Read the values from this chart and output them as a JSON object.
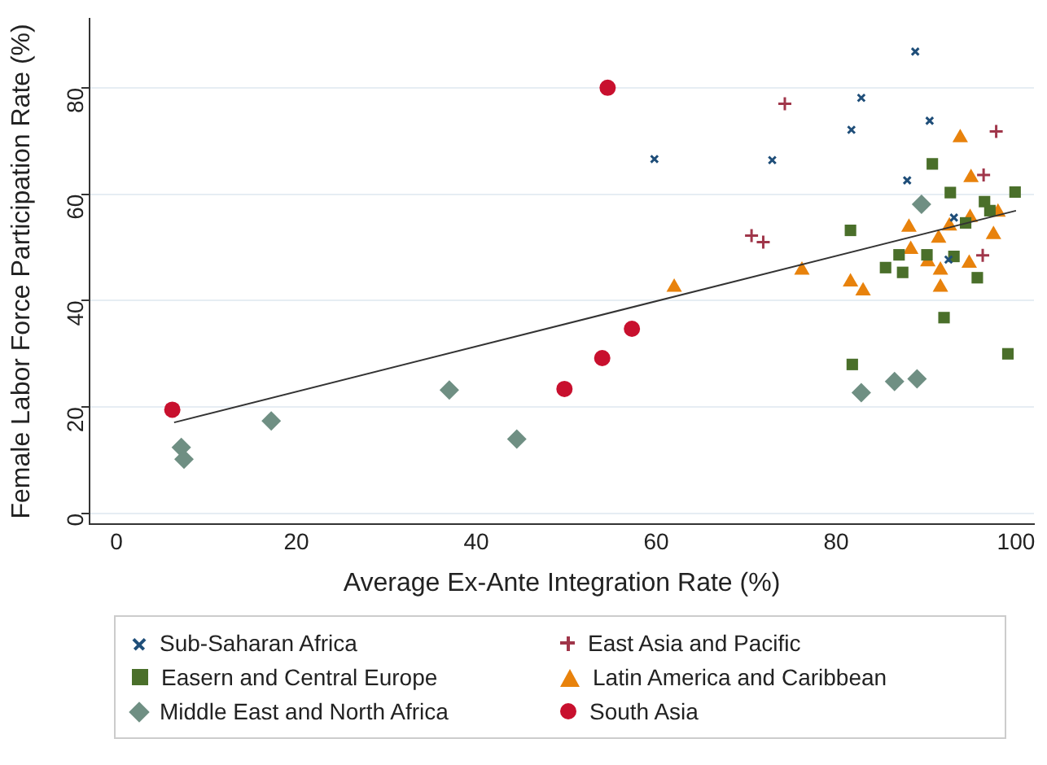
{
  "chart_data": {
    "type": "scatter",
    "xlabel": "Average Ex-Ante Integration Rate (%)",
    "ylabel": "Female Labor Force Participation Rate (%)",
    "xlim": [
      -3,
      102
    ],
    "ylim": [
      -2,
      93
    ],
    "xticks": [
      0,
      20,
      40,
      60,
      80,
      100
    ],
    "yticks": [
      0,
      20,
      40,
      60,
      80
    ],
    "grid": "y",
    "legend": "bottom",
    "series": [
      {
        "name": "Sub-Saharan Africa",
        "color": "#1f4e79",
        "marker": "cross",
        "x": [
          59.8,
          72.9,
          82.8,
          81.7,
          88.8,
          90.4,
          87.9,
          93.1,
          92.5
        ],
        "values": [
          66.6,
          66.4,
          78.1,
          72.1,
          86.8,
          73.8,
          62.6,
          55.6,
          47.7
        ]
      },
      {
        "name": "East Asia and Pacific",
        "color": "#a0364a",
        "marker": "plus",
        "x": [
          74.3,
          97.8,
          96.4,
          70.6,
          71.9,
          96.3
        ],
        "values": [
          77,
          71.8,
          63.6,
          52.2,
          51,
          48.5
        ]
      },
      {
        "name": "Easern and Central Europe",
        "color": "#4a6f2a",
        "marker": "square",
        "x": [
          90.7,
          92.7,
          96.5,
          99.9,
          97.1,
          81.6,
          94.4,
          87,
          90.1,
          93.1,
          85.5,
          87.4,
          95.7,
          92,
          81.8,
          99.1
        ],
        "values": [
          65.7,
          60.3,
          58.6,
          60.4,
          56.9,
          53.2,
          54.6,
          48.6,
          48.6,
          48.3,
          46.2,
          45.3,
          44.3,
          36.8,
          28,
          30
        ]
      },
      {
        "name": "Latin America and Caribbean",
        "color": "#e8820c",
        "marker": "triangle",
        "x": [
          93.8,
          95,
          98,
          88.1,
          92.6,
          94.9,
          91.4,
          97.5,
          88.3,
          90.2,
          91.6,
          94.8,
          76.2,
          81.6,
          83,
          91.6,
          62
        ],
        "values": [
          70.6,
          63.1,
          56.6,
          53.8,
          54,
          55.6,
          51.7,
          52.4,
          49.6,
          47.3,
          45.7,
          47,
          45.7,
          43.5,
          41.8,
          42.5,
          42.5
        ]
      },
      {
        "name": "Middle East and North Africa",
        "color": "#6f8f83",
        "marker": "diamond",
        "x": [
          7.2,
          7.5,
          17.2,
          37,
          44.5,
          82.8,
          86.5,
          89,
          89.5
        ],
        "values": [
          12.4,
          10.2,
          17.4,
          23.2,
          14,
          22.7,
          24.8,
          25.3,
          58.1
        ]
      },
      {
        "name": "South Asia",
        "color": "#c8102e",
        "marker": "circle",
        "x": [
          6.2,
          49.8,
          54.6,
          54,
          57.3
        ],
        "values": [
          19.5,
          23.4,
          80,
          29.2,
          34.7
        ]
      },
      {
        "type": "line",
        "color": "#333333",
        "marker": "none",
        "x": [
          6.4,
          100
        ],
        "values": [
          17.1,
          56.9
        ]
      }
    ]
  }
}
